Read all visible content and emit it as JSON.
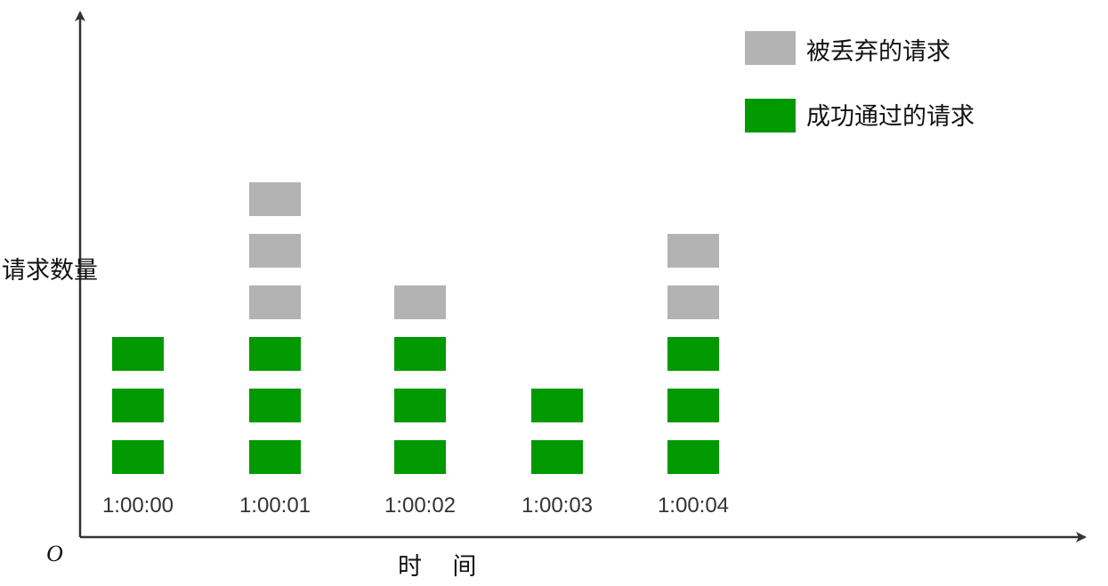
{
  "chart_data": {
    "type": "bar",
    "stacked": true,
    "categories": [
      "1:00:00",
      "1:00:01",
      "1:00:02",
      "1:00:03",
      "1:00:04"
    ],
    "series": [
      {
        "name": "成功通过的请求",
        "values": [
          3,
          3,
          3,
          2,
          3
        ],
        "color": "#009900"
      },
      {
        "name": "被丢弃的请求",
        "values": [
          0,
          3,
          1,
          0,
          2
        ],
        "color": "#b3b3b3"
      }
    ],
    "ylabel": "请求数量",
    "xlabel": "时    间",
    "origin_label": "O",
    "legend_position": "top-right",
    "grid": false
  }
}
